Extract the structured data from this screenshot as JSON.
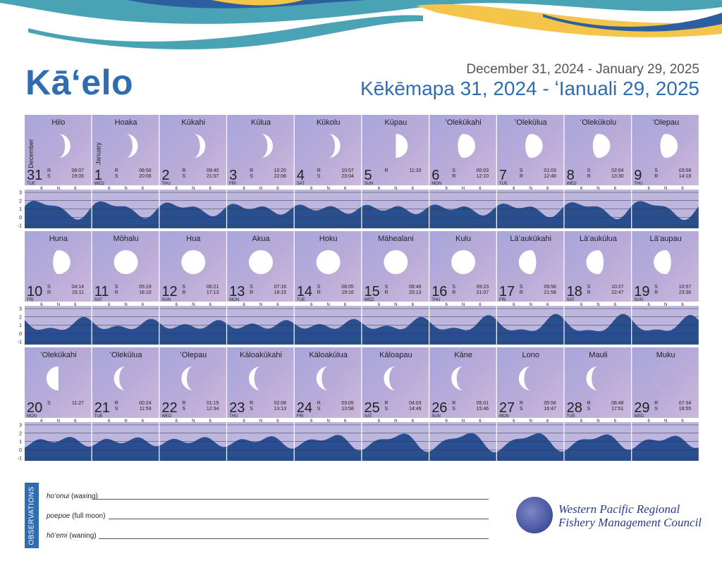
{
  "header": {
    "title": "Kāʻelo",
    "dates_en": "December 31, 2024 - January 29, 2025",
    "dates_hw": "Kēkēmapa  31, 2024 - ʻIanuali 29, 2025"
  },
  "colors": {
    "brand_blue": "#2f6db0",
    "tide_fill": "#2a4f8f",
    "wave_teal": "#4aa3b5",
    "wave_gold": "#f5c54a"
  },
  "tide_axis": [
    "3",
    "2",
    "1",
    "0",
    "-1"
  ],
  "tide_ticks": [
    "6",
    "N",
    "6"
  ],
  "days": [
    {
      "name": "Hilo",
      "num": "31",
      "dow": "TUE",
      "month": "December",
      "rs": [
        "R",
        "S"
      ],
      "times": [
        "08:07",
        "19:05"
      ],
      "phase": "waxing-crescent"
    },
    {
      "name": "Hoaka",
      "num": "1",
      "dow": "WED",
      "month": "January",
      "rs": [
        "R",
        "S"
      ],
      "times": [
        "08:56",
        "20:06"
      ],
      "phase": "waxing-crescent"
    },
    {
      "name": "Kūkahi",
      "num": "2",
      "dow": "THU",
      "rs": [
        "R",
        "S"
      ],
      "times": [
        "09:40",
        "21:07"
      ],
      "phase": "waxing-crescent"
    },
    {
      "name": "Kūlua",
      "num": "3",
      "dow": "FRI",
      "rs": [
        "R",
        "S"
      ],
      "times": [
        "10:20",
        "22:06"
      ],
      "phase": "waxing-crescent"
    },
    {
      "name": "Kūkolu",
      "num": "4",
      "dow": "SAT",
      "rs": [
        "R",
        "S"
      ],
      "times": [
        "10:57",
        "23:04"
      ],
      "phase": "waxing-crescent"
    },
    {
      "name": "Kūpau",
      "num": "5",
      "dow": "SUN",
      "rs": [
        "R",
        ""
      ],
      "times": [
        "11:33",
        ""
      ],
      "phase": "first-quarter"
    },
    {
      "name": "ʻOlekūkahi",
      "num": "6",
      "dow": "MON",
      "rs": [
        "S",
        "R"
      ],
      "times": [
        "00:03",
        "12:10"
      ],
      "phase": "waxing-gibbous"
    },
    {
      "name": "ʻOlekūlua",
      "num": "7",
      "dow": "TUE",
      "rs": [
        "S",
        "R"
      ],
      "times": [
        "01:03",
        "12:48"
      ],
      "phase": "waxing-gibbous"
    },
    {
      "name": "ʻOlekūkolu",
      "num": "8",
      "dow": "WED",
      "rs": [
        "S",
        "R"
      ],
      "times": [
        "02:04",
        "13:30"
      ],
      "phase": "waxing-gibbous"
    },
    {
      "name": "ʻOlepau",
      "num": "9",
      "dow": "THU",
      "rs": [
        "S",
        "R"
      ],
      "times": [
        "03:08",
        "14:18"
      ],
      "phase": "waxing-gibbous"
    },
    {
      "name": "Huna",
      "num": "10",
      "dow": "FRI",
      "rs": [
        "S",
        "R"
      ],
      "times": [
        "04:14",
        "15:11"
      ],
      "phase": "waxing-gibbous"
    },
    {
      "name": "Mōhalu",
      "num": "11",
      "dow": "SAT",
      "rs": [
        "S",
        "R"
      ],
      "times": [
        "05:19",
        "16:10"
      ],
      "phase": "full"
    },
    {
      "name": "Hua",
      "num": "12",
      "dow": "SUN",
      "rs": [
        "S",
        "R"
      ],
      "times": [
        "06:21",
        "17:13"
      ],
      "phase": "full"
    },
    {
      "name": "Akua",
      "num": "13",
      "dow": "MON",
      "rs": [
        "S",
        "R"
      ],
      "times": [
        "07:16",
        "18:15"
      ],
      "phase": "full"
    },
    {
      "name": "Hoku",
      "num": "14",
      "dow": "TUE",
      "rs": [
        "S",
        "R"
      ],
      "times": [
        "08:05",
        "19:16"
      ],
      "phase": "full"
    },
    {
      "name": "Māhealani",
      "num": "15",
      "dow": "WED",
      "rs": [
        "S",
        "R"
      ],
      "times": [
        "08:46",
        "20:13"
      ],
      "phase": "full"
    },
    {
      "name": "Kulu",
      "num": "16",
      "dow": "THU",
      "rs": [
        "S",
        "R"
      ],
      "times": [
        "09:23",
        "21:07"
      ],
      "phase": "full"
    },
    {
      "name": "Lāʻaukūkahi",
      "num": "17",
      "dow": "FRI",
      "rs": [
        "S",
        "R"
      ],
      "times": [
        "09:56",
        "21:58"
      ],
      "phase": "waning-gibbous"
    },
    {
      "name": "Lāʻaukūlua",
      "num": "18",
      "dow": "SAT",
      "rs": [
        "S",
        "R"
      ],
      "times": [
        "10:27",
        "22:47"
      ],
      "phase": "waning-gibbous"
    },
    {
      "name": "Lāʻaupau",
      "num": "19",
      "dow": "SUN",
      "rs": [
        "S",
        "R"
      ],
      "times": [
        "10:57",
        "23:36"
      ],
      "phase": "waning-gibbous"
    },
    {
      "name": "ʻOlekūkahi",
      "num": "20",
      "dow": "MON",
      "rs": [
        "S",
        ""
      ],
      "times": [
        "11:27",
        ""
      ],
      "phase": "last-quarter"
    },
    {
      "name": "ʻOlekūlua",
      "num": "21",
      "dow": "TUE",
      "rs": [
        "R",
        "S"
      ],
      "times": [
        "00:24",
        "11:59"
      ],
      "phase": "waning-crescent"
    },
    {
      "name": "ʻOlepau",
      "num": "22",
      "dow": "WED",
      "rs": [
        "R",
        "S"
      ],
      "times": [
        "01:15",
        "12:34"
      ],
      "phase": "waning-crescent"
    },
    {
      "name": "Kāloakūkahi",
      "num": "23",
      "dow": "THU",
      "rs": [
        "R",
        "S"
      ],
      "times": [
        "02:08",
        "13:13"
      ],
      "phase": "waning-crescent"
    },
    {
      "name": "Kāloakūlua",
      "num": "24",
      "dow": "FRI",
      "rs": [
        "R",
        "S"
      ],
      "times": [
        "03:05",
        "13:58"
      ],
      "phase": "waning-crescent"
    },
    {
      "name": "Kāloapau",
      "num": "25",
      "dow": "SAT",
      "rs": [
        "R",
        "S"
      ],
      "times": [
        "04:03",
        "14:49"
      ],
      "phase": "waning-crescent"
    },
    {
      "name": "Kāne",
      "num": "26",
      "dow": "SUN",
      "rs": [
        "R",
        "S"
      ],
      "times": [
        "05:01",
        "15:46"
      ],
      "phase": "waning-crescent"
    },
    {
      "name": "Lono",
      "num": "27",
      "dow": "MON",
      "rs": [
        "R",
        "S"
      ],
      "times": [
        "05:56",
        "16:47"
      ],
      "phase": "waning-crescent"
    },
    {
      "name": "Mauli",
      "num": "28",
      "dow": "TUE",
      "rs": [
        "R",
        "S"
      ],
      "times": [
        "06:48",
        "17:51"
      ],
      "phase": "waning-crescent"
    },
    {
      "name": "Muku",
      "num": "29",
      "dow": "WED",
      "rs": [
        "R",
        "S"
      ],
      "times": [
        "07:34",
        "18:55"
      ],
      "phase": "new"
    }
  ],
  "observations": {
    "label": "OBSERVATIONS",
    "rows": [
      {
        "hw": "hoʻonui",
        "en": "(waxing)"
      },
      {
        "hw": "poepoe",
        "en": "(full moon)"
      },
      {
        "hw": "hōʻemi",
        "en": "(waning)"
      }
    ]
  },
  "org": {
    "line1": "Western Pacific Regional",
    "line2": "Fishery Management Council"
  }
}
